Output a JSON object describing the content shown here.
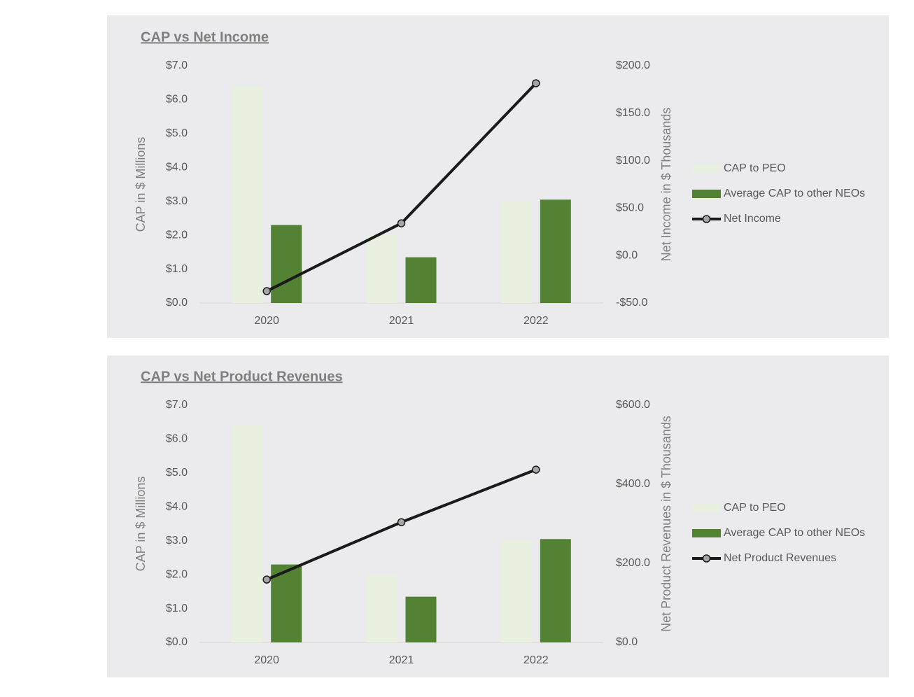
{
  "chart_data": [
    {
      "type": "bar",
      "title": "CAP vs Net Income",
      "categories": [
        "2020",
        "2021",
        "2022"
      ],
      "y_label": "CAP in $ Millions",
      "y2_label": "Net Income in $ Thousands",
      "series": [
        {
          "name": "CAP to PEO",
          "color": "#e8f0df",
          "values": [
            6.4,
            2.0,
            3.0
          ]
        },
        {
          "name": "Average CAP to other NEOs",
          "color": "#548235",
          "values": [
            2.3,
            1.35,
            3.05
          ]
        },
        {
          "name": "Net Income",
          "type": "line",
          "axis": "y2",
          "color": "#1a1a1a",
          "marker_color": "#a6a6a6",
          "values": [
            -37.5,
            34,
            181.6
          ]
        }
      ],
      "ylim": [
        0,
        7
      ],
      "yticks": [
        {
          "value": 0,
          "label": "$0.0"
        },
        {
          "value": 1,
          "label": "$1.0"
        },
        {
          "value": 2,
          "label": "$2.0"
        },
        {
          "value": 3,
          "label": "$3.0"
        },
        {
          "value": 4,
          "label": "$4.0"
        },
        {
          "value": 5,
          "label": "$5.0"
        },
        {
          "value": 6,
          "label": "$6.0"
        },
        {
          "value": 7,
          "label": "$7.0"
        }
      ],
      "y2lim": [
        -50,
        200
      ],
      "y2ticks": [
        {
          "value": -50,
          "label": "-$50.0"
        },
        {
          "value": 0,
          "label": "$0.0"
        },
        {
          "value": 50,
          "label": "$50.0"
        },
        {
          "value": 100,
          "label": "$100.0"
        },
        {
          "value": 150,
          "label": "$150.0"
        },
        {
          "value": 200,
          "label": "$200.0"
        }
      ],
      "grid": false,
      "legend": "right"
    },
    {
      "type": "bar",
      "title": "CAP vs Net Product Revenues",
      "categories": [
        "2020",
        "2021",
        "2022"
      ],
      "y_label": "CAP in $ Millions",
      "y2_label": "Net Product Revenues in $ Thousands",
      "series": [
        {
          "name": "CAP to PEO",
          "color": "#e8f0df",
          "values": [
            6.4,
            2.0,
            3.0
          ]
        },
        {
          "name": "Average CAP to other NEOs",
          "color": "#548235",
          "values": [
            2.3,
            1.35,
            3.05
          ]
        },
        {
          "name": "Net Product Revenues",
          "type": "line",
          "axis": "y2",
          "color": "#1a1a1a",
          "marker_color": "#a6a6a6",
          "values": [
            159,
            304,
            437
          ]
        }
      ],
      "ylim": [
        0,
        7
      ],
      "yticks": [
        {
          "value": 0,
          "label": "$0.0"
        },
        {
          "value": 1,
          "label": "$1.0"
        },
        {
          "value": 2,
          "label": "$2.0"
        },
        {
          "value": 3,
          "label": "$3.0"
        },
        {
          "value": 4,
          "label": "$4.0"
        },
        {
          "value": 5,
          "label": "$5.0"
        },
        {
          "value": 6,
          "label": "$6.0"
        },
        {
          "value": 7,
          "label": "$7.0"
        }
      ],
      "y2lim": [
        0,
        600
      ],
      "y2ticks": [
        {
          "value": 0,
          "label": "$0.0"
        },
        {
          "value": 200,
          "label": "$200.0"
        },
        {
          "value": 400,
          "label": "$400.0"
        },
        {
          "value": 600,
          "label": "$600.0"
        }
      ],
      "grid": false,
      "legend": "right"
    }
  ]
}
